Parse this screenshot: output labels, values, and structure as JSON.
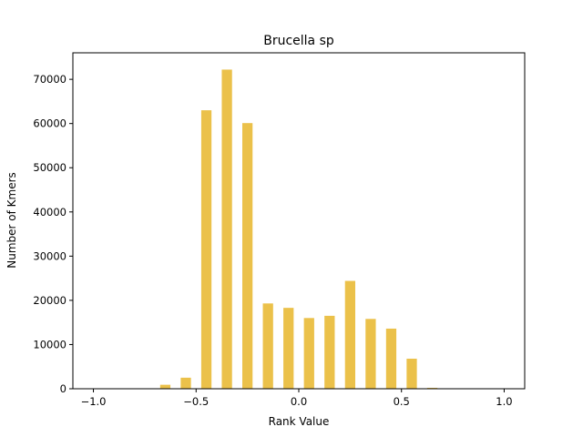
{
  "chart_data": {
    "type": "bar",
    "title": "Brucella sp",
    "xlabel": "Rank Value",
    "ylabel": "Number of Kmers",
    "xlim": [
      -1.1,
      1.1
    ],
    "ylim": [
      0,
      76000
    ],
    "xticks": [
      -1.0,
      -0.5,
      0.0,
      0.5,
      1.0
    ],
    "xtick_labels": [
      "−1.0",
      "−0.5",
      "0.0",
      "0.5",
      "1.0"
    ],
    "yticks": [
      0,
      10000,
      20000,
      30000,
      40000,
      50000,
      60000,
      70000
    ],
    "ytick_labels": [
      "0",
      "10000",
      "20000",
      "30000",
      "40000",
      "50000",
      "60000",
      "70000"
    ],
    "bar_width": 0.05,
    "x": [
      -0.65,
      -0.55,
      -0.45,
      -0.35,
      -0.25,
      -0.15,
      -0.05,
      0.05,
      0.15,
      0.25,
      0.35,
      0.45,
      0.55,
      0.65
    ],
    "values": [
      900,
      2500,
      63000,
      72200,
      60100,
      19300,
      18300,
      16000,
      16500,
      24400,
      15800,
      13600,
      6800,
      200
    ],
    "bar_color": "#ebc14a",
    "grid": false,
    "legend": false
  }
}
